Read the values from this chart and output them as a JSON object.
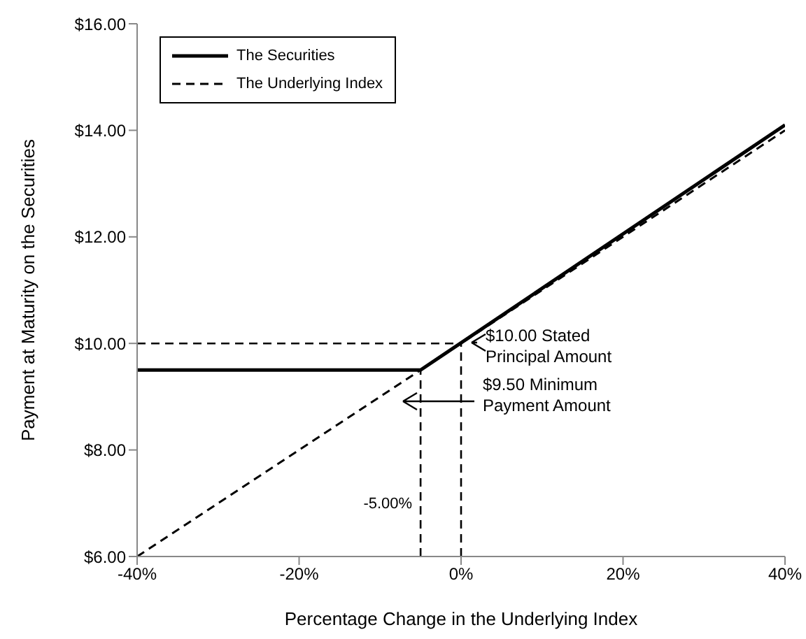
{
  "chart_data": {
    "type": "line",
    "xlabel": "Percentage Change in the Underlying Index",
    "ylabel": "Payment at Maturity on the Securities",
    "series": [
      {
        "name": "The Securities",
        "color": "#000000",
        "line_style": "solid",
        "x": [
          -40,
          -5,
          40
        ],
        "values": [
          9.5,
          9.5,
          14.1
        ]
      },
      {
        "name": "The Underlying Index",
        "color": "#000000",
        "line_style": "dashed",
        "x": [
          -40,
          40
        ],
        "values": [
          6,
          14
        ]
      }
    ],
    "xlim": [
      -40,
      40
    ],
    "xticks": [
      {
        "value": -40,
        "label": "-40%"
      },
      {
        "value": -20,
        "label": "-20%"
      },
      {
        "value": 0,
        "label": "0%"
      },
      {
        "value": 20,
        "label": "20%"
      },
      {
        "value": 40,
        "label": "40%"
      }
    ],
    "ylim": [
      6,
      16
    ],
    "yticks": [
      {
        "value": 6,
        "label": "$6.00"
      },
      {
        "value": 8,
        "label": "$8.00"
      },
      {
        "value": 10,
        "label": "$10.00"
      },
      {
        "value": 12,
        "label": "$12.00"
      },
      {
        "value": 14,
        "label": "$14.00"
      },
      {
        "value": 16,
        "label": "$16.00"
      }
    ],
    "ref_lines": [
      {
        "axis": "y",
        "value": 10,
        "line_style": "dashed"
      },
      {
        "axis": "x",
        "value": -5,
        "line_style": "dashed"
      },
      {
        "axis": "x",
        "value": 0,
        "line_style": "dashed"
      }
    ],
    "annotations": [
      "$10.00 Stated Principal Amount",
      "$9.50 Minimum Payment Amount",
      {
        "text": "-5.00%",
        "x": -5,
        "y": 6.9
      }
    ],
    "marker": "none",
    "legend": "top left"
  }
}
